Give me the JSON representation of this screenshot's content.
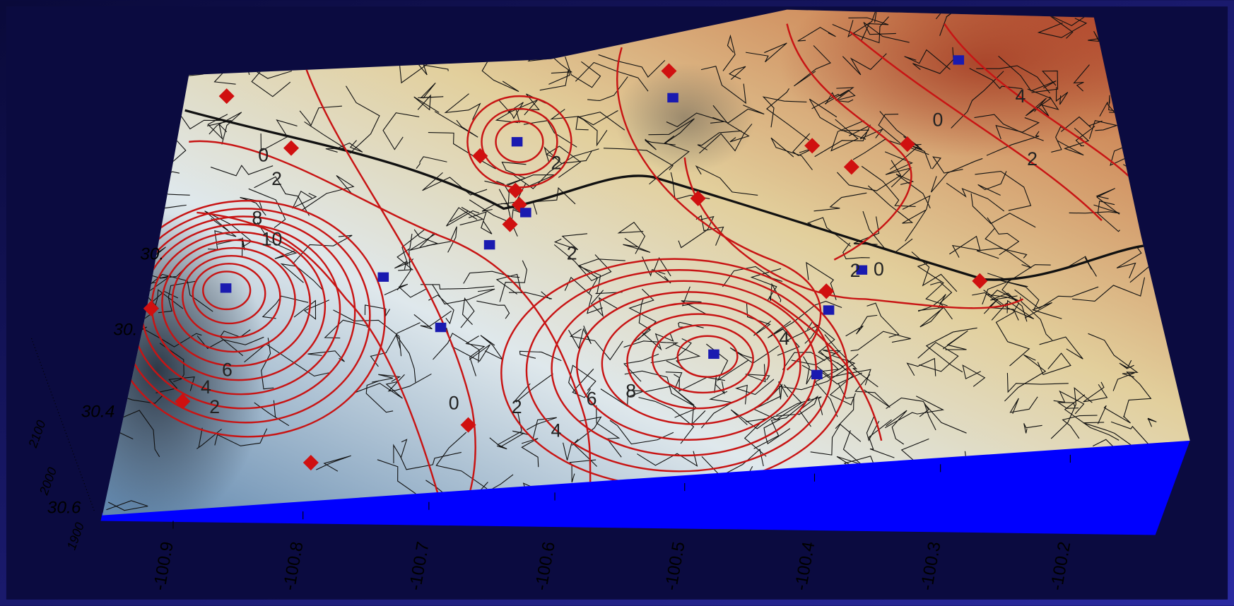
{
  "x_axis": {
    "tick_labels": [
      "-100.9",
      "-100.8",
      "-100.7",
      "-100.6",
      "-100.5",
      "-100.4",
      "-100.3",
      "-100.2"
    ]
  },
  "y_axis": {
    "tick_labels": [
      "30.",
      "30.",
      "30.4",
      "30.6"
    ]
  },
  "z_axis": {
    "tick_labels": [
      "2100",
      "2000",
      "1900"
    ]
  },
  "contour_labels": [
    "0",
    "2",
    "8",
    "10",
    "6",
    "4",
    "2",
    "0",
    "2",
    "4",
    "6",
    "8",
    "2",
    "2",
    "0",
    "4",
    "2",
    "0",
    "4",
    "2"
  ]
}
